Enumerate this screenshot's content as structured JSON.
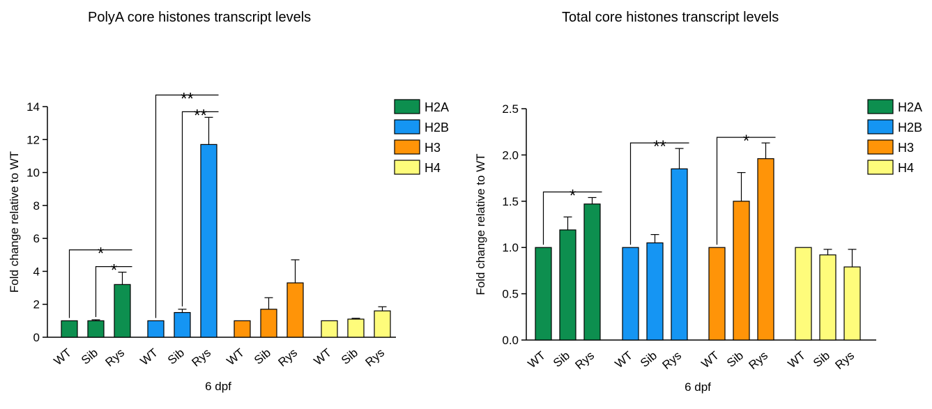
{
  "colors": {
    "H2A": "#0d8f4f",
    "H2B": "#1595f3",
    "H3": "#ff9408",
    "H4": "#fefc7b"
  },
  "chart_data": [
    {
      "type": "bar",
      "title": "PolyA core histones transcript levels",
      "xlabel": "6 dpf",
      "ylabel": "Fold change relative to WT",
      "ylim": [
        0,
        14
      ],
      "yticks": [
        "0",
        "2",
        "4",
        "6",
        "8",
        "10",
        "12",
        "14"
      ],
      "categories": [
        "WT",
        "Sib",
        "Rys"
      ],
      "legend_position": "top-right",
      "series": [
        {
          "name": "H2A",
          "values": [
            1.0,
            1.0,
            3.2
          ],
          "errors": [
            0,
            0.06,
            0.75
          ]
        },
        {
          "name": "H2B",
          "values": [
            1.0,
            1.5,
            11.7
          ],
          "errors": [
            0,
            0.2,
            1.65
          ]
        },
        {
          "name": "H3",
          "values": [
            1.0,
            1.7,
            3.3
          ],
          "errors": [
            0,
            0.7,
            1.4
          ]
        },
        {
          "name": "H4",
          "values": [
            1.0,
            1.1,
            1.6
          ],
          "errors": [
            0,
            0.05,
            0.25
          ]
        }
      ],
      "significance": [
        {
          "series": "H2A",
          "from": "WT",
          "to": "Rys",
          "label": "*"
        },
        {
          "series": "H2A",
          "from": "Sib",
          "to": "Rys",
          "label": "*"
        },
        {
          "series": "H2B",
          "from": "WT",
          "to": "Rys",
          "label": "**"
        },
        {
          "series": "H2B",
          "from": "Sib",
          "to": "Rys",
          "label": "**"
        }
      ]
    },
    {
      "type": "bar",
      "title": "Total core histones transcript levels",
      "xlabel": "6 dpf",
      "ylabel": "Fold change relative to WT",
      "ylim": [
        0,
        2.5
      ],
      "yticks": [
        "0.0",
        "0.5",
        "1.0",
        "1.5",
        "2.0",
        "2.5"
      ],
      "categories": [
        "WT",
        "Sib",
        "Rys"
      ],
      "legend_position": "top-right",
      "series": [
        {
          "name": "H2A",
          "values": [
            1.0,
            1.19,
            1.47
          ],
          "errors": [
            0,
            0.14,
            0.07
          ]
        },
        {
          "name": "H2B",
          "values": [
            1.0,
            1.05,
            1.85
          ],
          "errors": [
            0,
            0.09,
            0.22
          ]
        },
        {
          "name": "H3",
          "values": [
            1.0,
            1.5,
            1.96
          ],
          "errors": [
            0,
            0.31,
            0.17
          ]
        },
        {
          "name": "H4",
          "values": [
            1.0,
            0.92,
            0.79
          ],
          "errors": [
            0,
            0.06,
            0.19
          ]
        }
      ],
      "significance": [
        {
          "series": "H2A",
          "from": "WT",
          "to": "Rys",
          "label": "*"
        },
        {
          "series": "H2B",
          "from": "WT",
          "to": "Rys",
          "label": "**"
        },
        {
          "series": "H3",
          "from": "WT",
          "to": "Rys",
          "label": "*"
        }
      ]
    }
  ]
}
